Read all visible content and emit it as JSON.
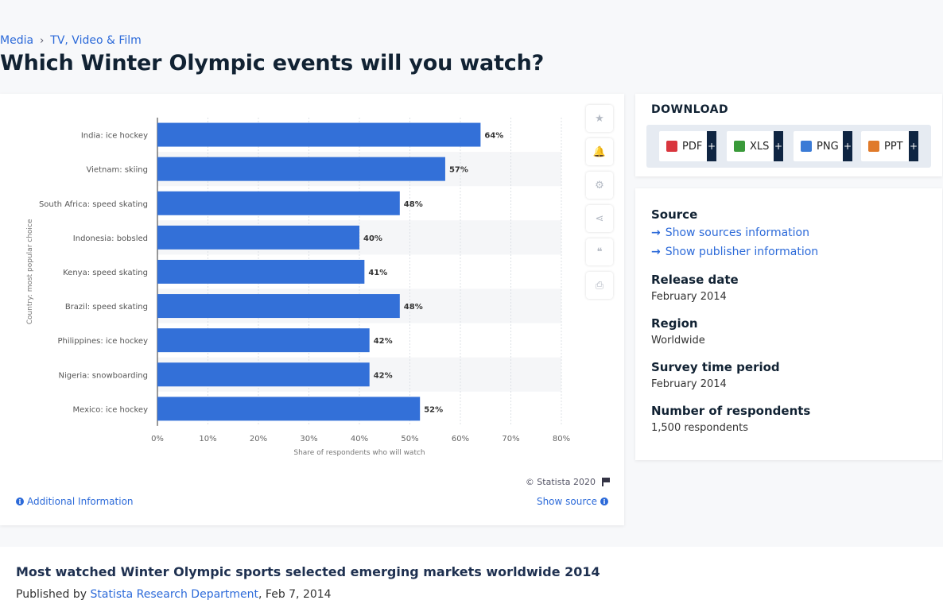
{
  "breadcrumb": {
    "item1": "Media",
    "separator": "›",
    "item2": "TV, Video & Film"
  },
  "page_title": "Which Winter Olympic events will you watch?",
  "chart_data": {
    "type": "bar",
    "orientation": "horizontal",
    "categories": [
      "India: ice hockey",
      "Vietnam: skiing",
      "South Africa: speed skating",
      "Indonesia: bobsled",
      "Kenya: speed skating",
      "Brazil: speed skating",
      "Philippines: ice hockey",
      "Nigeria: snowboarding",
      "Mexico: ice hockey"
    ],
    "values": [
      64,
      57,
      48,
      40,
      41,
      48,
      42,
      42,
      52
    ],
    "value_labels": [
      "64%",
      "57%",
      "48%",
      "40%",
      "41%",
      "48%",
      "42%",
      "42%",
      "52%"
    ],
    "xticks": [
      "0%",
      "10%",
      "20%",
      "30%",
      "40%",
      "50%",
      "60%",
      "70%",
      "80%"
    ],
    "xlim": [
      0,
      80
    ],
    "xlabel": "Share of respondents who will watch",
    "ylabel": "Country: most popular choice",
    "bar_color": "#3370d8",
    "grid": true
  },
  "tools": {
    "star": "★",
    "bell": "🔔",
    "gear": "⚙",
    "share": "⋖",
    "quote": "❝",
    "print": "⎙"
  },
  "chart_footer": {
    "copyright": "© Statista 2020",
    "additional_info": "Additional Information",
    "show_source": "Show source"
  },
  "download": {
    "title": "DOWNLOAD",
    "buttons": [
      {
        "label": "PDF",
        "plus": "+",
        "color": "#d9363e"
      },
      {
        "label": "XLS",
        "plus": "+",
        "color": "#3a9a3a"
      },
      {
        "label": "PNG",
        "plus": "+",
        "color": "#3b7bd6"
      },
      {
        "label": "PPT",
        "plus": "+",
        "color": "#e07a2a"
      }
    ]
  },
  "info": {
    "source_label": "Source",
    "show_sources": "Show sources information",
    "show_publisher": "Show publisher information",
    "release_label": "Release date",
    "release_value": "February 2014",
    "region_label": "Region",
    "region_value": "Worldwide",
    "survey_label": "Survey time period",
    "survey_value": "February 2014",
    "respondents_label": "Number of respondents",
    "respondents_value": "1,500 respondents"
  },
  "bottom": {
    "title": "Most watched Winter Olympic sports selected emerging markets worldwide 2014",
    "published_prefix": "Published by",
    "publisher": "Statista Research Department",
    "date": ", Feb 7, 2014"
  }
}
